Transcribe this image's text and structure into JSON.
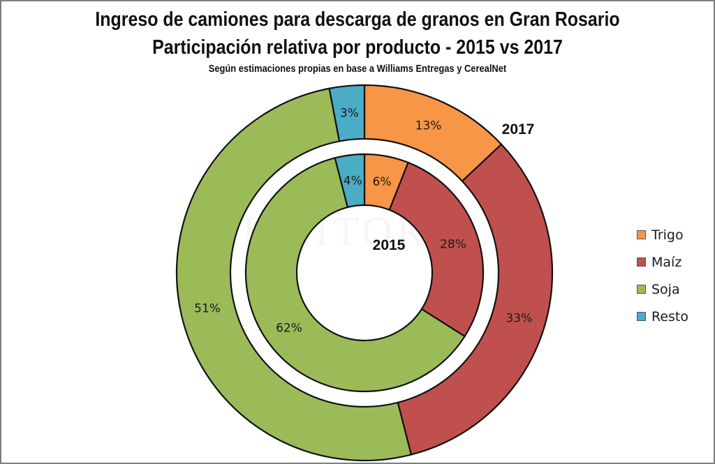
{
  "header": {
    "title_line1": "Ingreso de camiones para descarga de granos en Gran Rosario",
    "title_line2": "Participación relativa por producto - 2015 vs 2017",
    "subtitle": "Según estimaciones propias en base a Williams Entregas y CerealNet"
  },
  "watermark": "EL LITORAL",
  "chart_data": {
    "type": "donut",
    "title": "Ingreso de camiones para descarga de granos en Gran Rosario",
    "subtitle": "Participación relativa por producto - 2015 vs 2017",
    "categories": [
      "Trigo",
      "Maíz",
      "Soja",
      "Resto"
    ],
    "colors": [
      "#f79646",
      "#c0504d",
      "#9bbb59",
      "#4bacc6"
    ],
    "series": [
      {
        "name": "2015",
        "ring": "inner",
        "values": [
          6,
          28,
          62,
          4
        ],
        "labels": [
          "6%",
          "28%",
          "62%",
          "4%"
        ]
      },
      {
        "name": "2017",
        "ring": "outer",
        "values": [
          13,
          33,
          51,
          3
        ],
        "labels": [
          "13%",
          "33%",
          "51%",
          "3%"
        ]
      }
    ],
    "legend_position": "right"
  },
  "legend": [
    {
      "label": "Trigo",
      "color": "#f79646"
    },
    {
      "label": "Maíz",
      "color": "#c0504d"
    },
    {
      "label": "Soja",
      "color": "#9bbb59"
    },
    {
      "label": "Resto",
      "color": "#4bacc6"
    }
  ]
}
